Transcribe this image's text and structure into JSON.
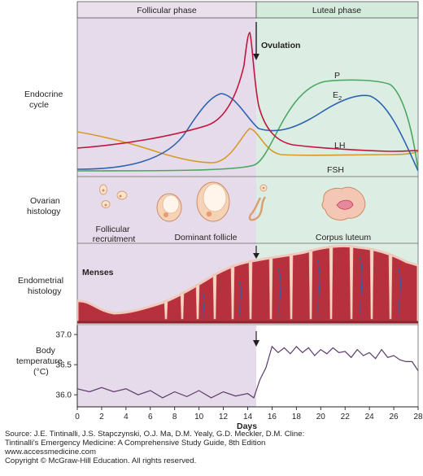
{
  "phases": {
    "follicular": "Follicular phase",
    "luteal": "Luteal phase"
  },
  "row_labels": {
    "endocrine": [
      "Endocrine",
      "cycle"
    ],
    "ovarian": [
      "Ovarian",
      "histology"
    ],
    "endometrial": [
      "Endometrial",
      "histology"
    ],
    "body_temp": [
      "Body",
      "temperature",
      "(°C)"
    ]
  },
  "hormones": {
    "ovulation": "Ovulation",
    "p": "P",
    "e2_base": "E",
    "e2_sub": "2",
    "lh": "LH",
    "fsh": "FSH"
  },
  "ovarian_labels": {
    "recruitment_1": "Follicular",
    "recruitment_2": "recruitment",
    "dominant": "Dominant follicle",
    "corpus": "Corpus luteum"
  },
  "menses": "Menses",
  "colors": {
    "follicular_bg": "#e6dbea",
    "luteal_bg": "#dceee4",
    "follicular_header": "#e9e0ec",
    "luteal_header": "#d3eadc",
    "lh": "#c0163d",
    "e2": "#2b63b0",
    "p": "#4aa860",
    "fsh": "#d49a2a",
    "temp": "#5e3a6b"
  },
  "chart_data": {
    "type": "line",
    "x": [
      0,
      1,
      2,
      3,
      4,
      5,
      6,
      7,
      8,
      9,
      10,
      11,
      12,
      13,
      14,
      14.5,
      15,
      15.5,
      16,
      16.5,
      17,
      17.5,
      18,
      18.5,
      19,
      19.5,
      20,
      20.5,
      21,
      21.5,
      22,
      22.5,
      23,
      23.5,
      24,
      24.5,
      25,
      25.5,
      26,
      26.5,
      27,
      27.5,
      28
    ],
    "xlabel": "Days",
    "x_ticks": [
      "0",
      "2",
      "4",
      "6",
      "8",
      "10",
      "12",
      "14",
      "16",
      "18",
      "20",
      "22",
      "24",
      "26",
      "28"
    ],
    "y_ticks": [
      "37.0",
      "36.5",
      "36.0"
    ],
    "ylim": [
      35.8,
      37.15
    ],
    "series": [
      {
        "name": "Body temperature",
        "values": [
          36.1,
          36.05,
          36.12,
          36.05,
          36.1,
          36.0,
          36.07,
          35.95,
          36.05,
          35.97,
          36.07,
          35.95,
          36.05,
          35.98,
          36.02,
          35.95,
          36.25,
          36.45,
          36.8,
          36.7,
          36.78,
          36.68,
          36.8,
          36.7,
          36.78,
          36.65,
          36.75,
          36.68,
          36.78,
          36.7,
          36.72,
          36.62,
          36.75,
          36.65,
          36.7,
          36.6,
          36.75,
          36.62,
          36.65,
          36.58,
          36.55,
          36.55,
          36.4
        ]
      }
    ]
  },
  "source": {
    "line1": "Source: J.E. Tintinalli, J.S. Stapczynski, O.J. Ma, D.M. Yealy, G.D. Meckler, D.M. Cline:",
    "line2": "Tintinalli's Emergency Medicine: A Comprehensive Study Guide, 8th Edition",
    "line3": "www.accessmedicine.com",
    "line4": "Copyright © McGraw-Hill Education.  All rights reserved."
  }
}
